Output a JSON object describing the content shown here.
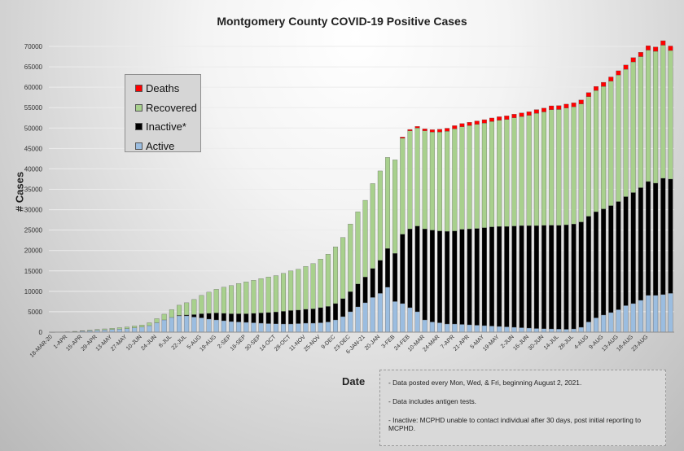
{
  "chart_data": {
    "type": "bar",
    "stacked": true,
    "title": "Montgomery County COVID-19 Positive Cases",
    "xlabel": "Date",
    "ylabel": "# Cases",
    "ylim": [
      0,
      70000
    ],
    "yticks": [
      "0",
      "5000",
      "10000",
      "15000",
      "20000",
      "25000",
      "30000",
      "35000",
      "40000",
      "45000",
      "50000",
      "55000",
      "60000",
      "65000",
      "70000"
    ],
    "grid": "horizontal",
    "legend_position": "upper-left",
    "xticks": [
      "18-MAR-20",
      "1-APR",
      "15-APR",
      "29-APR",
      "13-MAY",
      "27-MAY",
      "10-JUN",
      "24-JUN",
      "8-JUL",
      "22-JUL",
      "5-AUG",
      "19-AUG",
      "2-SEP",
      "16-SEP",
      "30-SEP",
      "14-OCT",
      "28-OCT",
      "11-NOV",
      "25-NOV",
      "9-DEC",
      "23-DEC",
      "6-JAN-21",
      "20-JAN",
      "3-FEB",
      "24-FEB",
      "10-MAR",
      "24-MAR",
      "7-APR",
      "21-APR",
      "5-MAY",
      "19-MAY",
      "2-JUN",
      "16-JUN",
      "30-JUN",
      "14-JUL",
      "28-JUL",
      "4-AUG",
      "9-AUG",
      "13-AUG",
      "18-AUG",
      "23-AUG"
    ],
    "xtick_index": [
      0,
      2,
      4,
      6,
      8,
      10,
      12,
      14,
      16,
      18,
      20,
      22,
      24,
      26,
      28,
      30,
      32,
      34,
      36,
      38,
      40,
      42,
      44,
      46,
      48,
      50,
      52,
      54,
      56,
      58,
      60,
      62,
      64,
      66,
      68,
      70,
      72,
      74,
      76,
      78,
      80
    ],
    "series": [
      {
        "name": "Active",
        "color": "#9bbde0",
        "values": [
          10,
          50,
          100,
          150,
          250,
          350,
          450,
          550,
          650,
          750,
          850,
          1050,
          1250,
          1600,
          2300,
          3000,
          3600,
          4000,
          4000,
          3700,
          3500,
          3200,
          3000,
          2800,
          2600,
          2500,
          2400,
          2300,
          2200,
          2100,
          2050,
          2000,
          2000,
          2100,
          2200,
          2200,
          2300,
          2500,
          3000,
          3800,
          5000,
          6200,
          7200,
          8500,
          9500,
          11000,
          7500,
          7000,
          6000,
          5000,
          3000,
          2500,
          2300,
          2000,
          2000,
          1900,
          1800,
          1700,
          1600,
          1500,
          1400,
          1300,
          1200,
          1100,
          1000,
          900,
          850,
          800,
          750,
          700,
          800,
          1200,
          2500,
          3500,
          4200,
          4800,
          5500,
          6500,
          7000,
          7800,
          9000,
          9000,
          9200,
          9500
        ]
      },
      {
        "name": "Inactive*",
        "color": "#000000",
        "values": [
          0,
          0,
          0,
          0,
          0,
          0,
          0,
          0,
          0,
          0,
          0,
          0,
          0,
          0,
          0,
          0,
          0,
          100,
          200,
          600,
          1000,
          1400,
          1700,
          1800,
          1900,
          2000,
          2100,
          2300,
          2500,
          2700,
          2900,
          3100,
          3300,
          3300,
          3400,
          3500,
          3700,
          3800,
          4000,
          4400,
          4900,
          5600,
          6300,
          7100,
          8100,
          9500,
          11800,
          17000,
          19300,
          21000,
          22300,
          22500,
          22500,
          22700,
          22800,
          23300,
          23500,
          23700,
          24000,
          24300,
          24500,
          24600,
          24800,
          25000,
          25100,
          25200,
          25300,
          25400,
          25400,
          25600,
          25700,
          25800,
          25900,
          26000,
          26000,
          26200,
          26500,
          26700,
          27200,
          27600,
          27900,
          27500,
          28500,
          28000
        ]
      },
      {
        "name": "Recovered",
        "color": "#a8d08d",
        "values": [
          0,
          0,
          0,
          50,
          100,
          150,
          200,
          250,
          300,
          350,
          400,
          450,
          500,
          700,
          1000,
          1400,
          1900,
          2500,
          3000,
          3700,
          4500,
          5200,
          5800,
          6400,
          6900,
          7400,
          7800,
          8100,
          8400,
          8700,
          8900,
          9300,
          9700,
          10000,
          10500,
          11100,
          11900,
          12800,
          13900,
          15000,
          16600,
          17700,
          18800,
          20800,
          21900,
          22300,
          22900,
          23500,
          24000,
          24000,
          24000,
          24000,
          24200,
          24500,
          25000,
          25100,
          25300,
          25500,
          25600,
          25800,
          26000,
          26200,
          26500,
          26700,
          27000,
          27500,
          27800,
          28300,
          28400,
          28600,
          28700,
          28900,
          29300,
          29700,
          30000,
          30500,
          31000,
          31200,
          32000,
          32100,
          32200,
          32300,
          32600,
          31500
        ]
      },
      {
        "name": "Deaths",
        "color": "#ff0000",
        "values": [
          0,
          0,
          0,
          0,
          0,
          0,
          0,
          0,
          0,
          0,
          0,
          0,
          0,
          0,
          0,
          0,
          0,
          0,
          0,
          0,
          0,
          0,
          0,
          0,
          0,
          0,
          0,
          0,
          0,
          0,
          0,
          0,
          0,
          0,
          0,
          0,
          0,
          0,
          0,
          0,
          0,
          0,
          0,
          0,
          0,
          0,
          0,
          300,
          350,
          400,
          500,
          600,
          700,
          750,
          780,
          800,
          820,
          840,
          850,
          860,
          870,
          880,
          890,
          900,
          910,
          920,
          930,
          940,
          950,
          960,
          970,
          980,
          990,
          1000,
          1010,
          1020,
          1030,
          1040,
          1050,
          1060,
          1070,
          1080,
          1090,
          1100
        ]
      }
    ]
  },
  "legend": [
    {
      "label": "Deaths",
      "color": "#ff0000"
    },
    {
      "label": "Recovered",
      "color": "#a8d08d"
    },
    {
      "label": "Inactive*",
      "color": "#000000"
    },
    {
      "label": "Active",
      "color": "#9bbde0"
    }
  ],
  "notes": [
    "- Data posted every Mon, Wed, & Fri, beginning August 2, 2021.",
    "- Data includes antigen tests.",
    "- Inactive: MCPHD unable to contact individual after 30 days, post initial reporting to MCPHD."
  ]
}
